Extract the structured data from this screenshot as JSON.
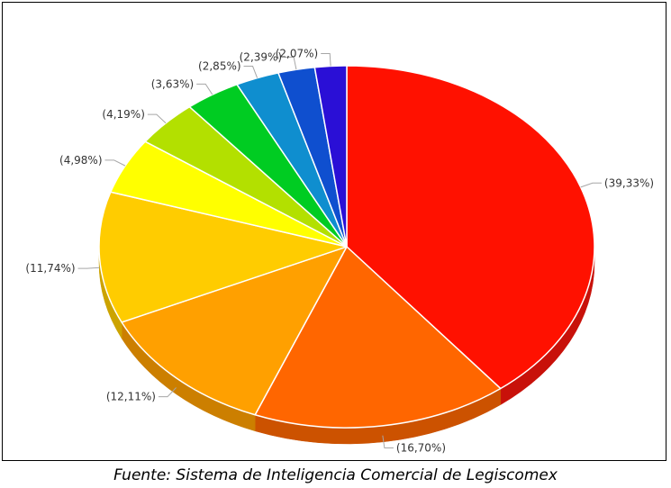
{
  "chart_data": {
    "type": "pie",
    "title": "",
    "three_d": true,
    "slices": [
      {
        "label": "(39,33%)",
        "value": 39.33,
        "color": "#ff1100",
        "side_color": "#c8110a"
      },
      {
        "label": "(16,70%)",
        "value": 16.7,
        "color": "#ff6600",
        "side_color": "#cc5200"
      },
      {
        "label": "(12,11%)",
        "value": 12.11,
        "color": "#ffa000",
        "side_color": "#cc7f00"
      },
      {
        "label": "(11,74%)",
        "value": 11.74,
        "color": "#ffcc00",
        "side_color": "#cca300"
      },
      {
        "label": "(4,98%)",
        "value": 4.98,
        "color": "#ffff00",
        "side_color": "#cccc00"
      },
      {
        "label": "(4,19%)",
        "value": 4.19,
        "color": "#b3e000",
        "side_color": "#8fb300"
      },
      {
        "label": "(3,63%)",
        "value": 3.63,
        "color": "#00cc22",
        "side_color": "#00a31b"
      },
      {
        "label": "(2,85%)",
        "value": 2.85,
        "color": "#0f8ecf",
        "side_color": "#0c72a6"
      },
      {
        "label": "(2,39%)",
        "value": 2.39,
        "color": "#0f4fcf",
        "side_color": "#0c3fa6"
      },
      {
        "label": "(2,07%)",
        "value": 2.07,
        "color": "#2a0fd6",
        "side_color": "#220cab"
      }
    ]
  },
  "caption": "Fuente: Sistema de Inteligencia Comercial de Legiscomex"
}
